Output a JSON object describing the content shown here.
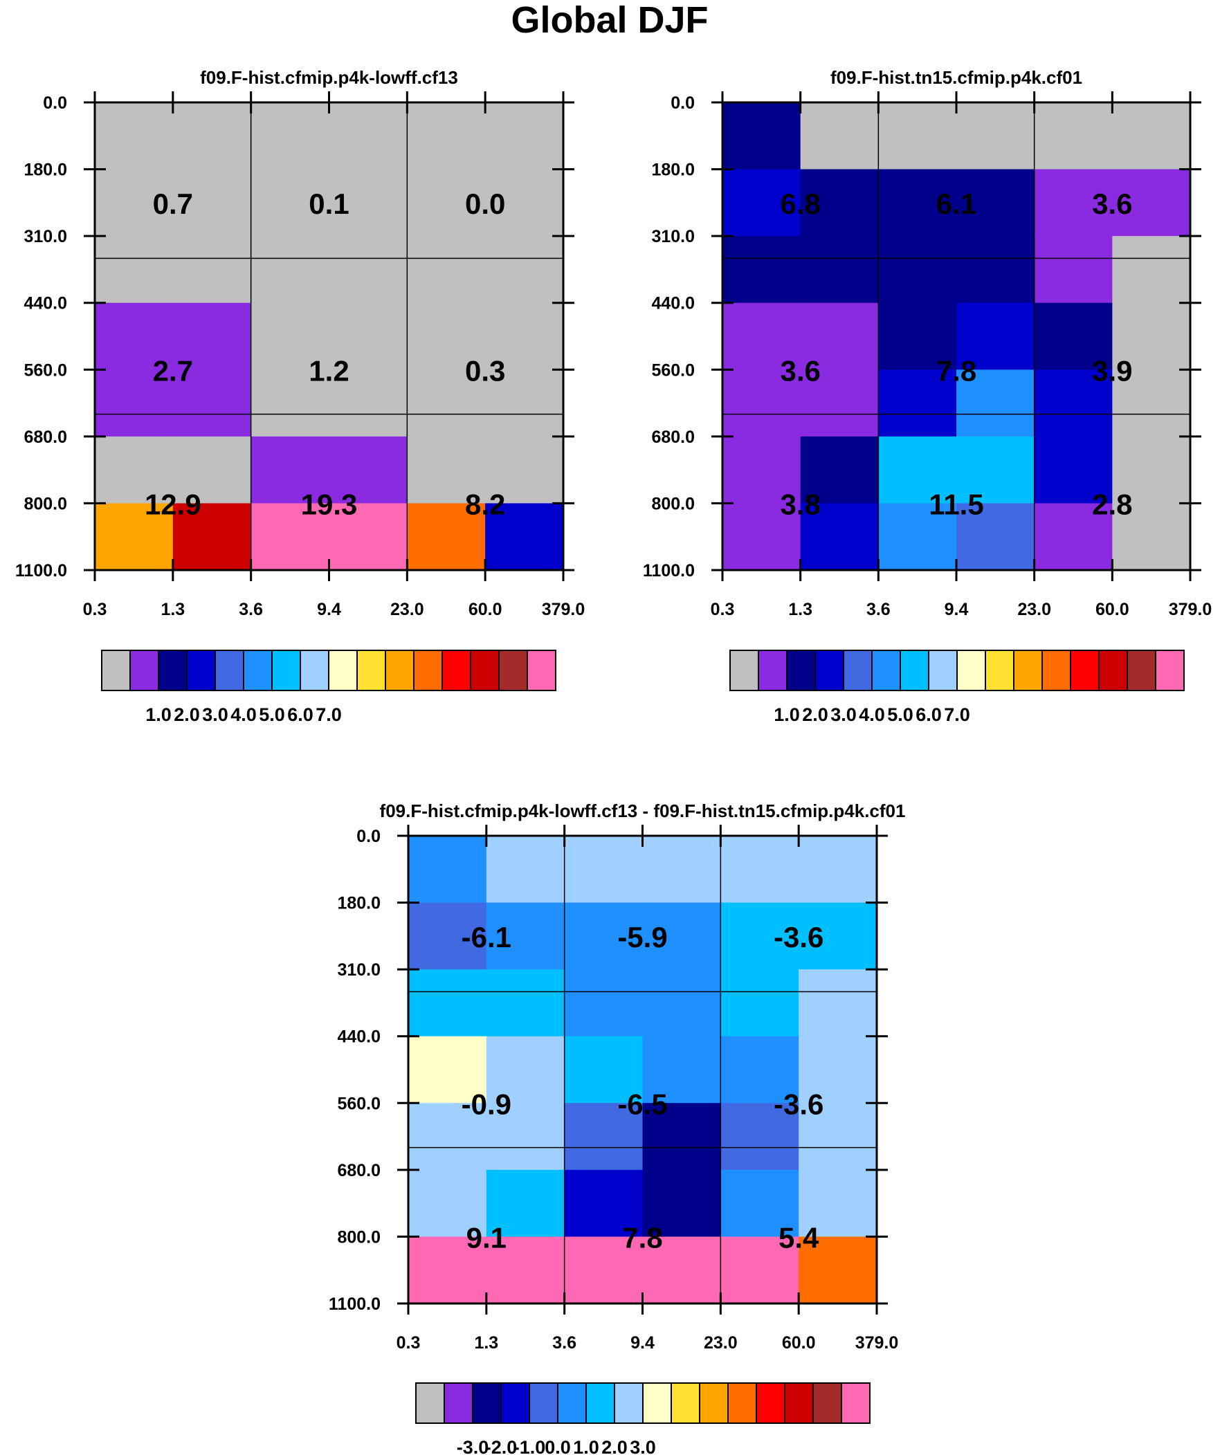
{
  "title": "Global DJF",
  "palette": [
    "#c0c0c0",
    "#8a2be2",
    "#00008b",
    "#0000cd",
    "#4169e1",
    "#1e90ff",
    "#00bfff",
    "#a0d0ff",
    "#ffffc8",
    "#ffe033",
    "#ffa500",
    "#ff6c00",
    "#ff0000",
    "#cc0000",
    "#a52a2a",
    "#ff69b4"
  ],
  "chart_data": [
    {
      "type": "heatmap",
      "title": "f09.F-hist.cfmip.p4k-lowff.cf13",
      "x_ticks": [
        "0.3",
        "1.3",
        "3.6",
        "9.4",
        "23.0",
        "60.0",
        "379.0"
      ],
      "y_ticks": [
        "0.0",
        "180.0",
        "310.0",
        "440.0",
        "560.0",
        "680.0",
        "800.0",
        "1100.0"
      ],
      "cells": [
        [
          0,
          0,
          0,
          0,
          0,
          0
        ],
        [
          0,
          0,
          0,
          0,
          0,
          0
        ],
        [
          0,
          0,
          0,
          0,
          0,
          0
        ],
        [
          1,
          1,
          0,
          0,
          0,
          0
        ],
        [
          1,
          1,
          0,
          0,
          0,
          0
        ],
        [
          0,
          0,
          1,
          1,
          0,
          0
        ],
        [
          10,
          13,
          15,
          15,
          11,
          3
        ]
      ],
      "labels": [
        [
          "0.7",
          "0.1",
          "0.0"
        ],
        [
          "2.7",
          "1.2",
          "0.3"
        ],
        [
          "12.9",
          "19.3",
          "8.2"
        ]
      ],
      "colorbar_ticks": [
        "1.0",
        "2.0",
        "3.0",
        "4.0",
        "5.0",
        "6.0",
        "7.0"
      ]
    },
    {
      "type": "heatmap",
      "title": "f09.F-hist.tn15.cfmip.p4k.cf01",
      "x_ticks": [
        "0.3",
        "1.3",
        "3.6",
        "9.4",
        "23.0",
        "60.0",
        "379.0"
      ],
      "y_ticks": [
        "0.0",
        "180.0",
        "310.0",
        "440.0",
        "560.0",
        "680.0",
        "800.0",
        "1100.0"
      ],
      "cells": [
        [
          2,
          0,
          0,
          0,
          0,
          0
        ],
        [
          3,
          2,
          2,
          2,
          1,
          1
        ],
        [
          2,
          2,
          2,
          2,
          1,
          0
        ],
        [
          1,
          1,
          2,
          3,
          2,
          0
        ],
        [
          1,
          1,
          3,
          5,
          3,
          0
        ],
        [
          1,
          2,
          6,
          6,
          3,
          0
        ],
        [
          1,
          3,
          5,
          4,
          1,
          0
        ]
      ],
      "labels": [
        [
          "6.8",
          "6.1",
          "3.6"
        ],
        [
          "3.6",
          "7.8",
          "3.9"
        ],
        [
          "3.8",
          "11.5",
          "2.8"
        ]
      ],
      "colorbar_ticks": [
        "1.0",
        "2.0",
        "3.0",
        "4.0",
        "5.0",
        "6.0",
        "7.0"
      ]
    },
    {
      "type": "heatmap",
      "title": "f09.F-hist.cfmip.p4k-lowff.cf13 - f09.F-hist.tn15.cfmip.p4k.cf01",
      "x_ticks": [
        "0.3",
        "1.3",
        "3.6",
        "9.4",
        "23.0",
        "60.0",
        "379.0"
      ],
      "y_ticks": [
        "0.0",
        "180.0",
        "310.0",
        "440.0",
        "560.0",
        "680.0",
        "800.0",
        "1100.0"
      ],
      "cells": [
        [
          5,
          7,
          7,
          7,
          7,
          7
        ],
        [
          4,
          5,
          5,
          5,
          6,
          6
        ],
        [
          6,
          6,
          5,
          5,
          6,
          7
        ],
        [
          8,
          7,
          6,
          5,
          5,
          7
        ],
        [
          7,
          7,
          4,
          2,
          4,
          7
        ],
        [
          7,
          6,
          3,
          2,
          5,
          7
        ],
        [
          15,
          15,
          15,
          15,
          15,
          11
        ]
      ],
      "labels": [
        [
          "-6.1",
          "-5.9",
          "-3.6"
        ],
        [
          "-0.9",
          "-6.5",
          "-3.6"
        ],
        [
          "9.1",
          "7.8",
          "5.4"
        ]
      ],
      "colorbar_ticks": [
        "-3.0",
        "-2.0",
        "-1.0",
        "0.0",
        "1.0",
        "2.0",
        "3.0"
      ]
    }
  ]
}
